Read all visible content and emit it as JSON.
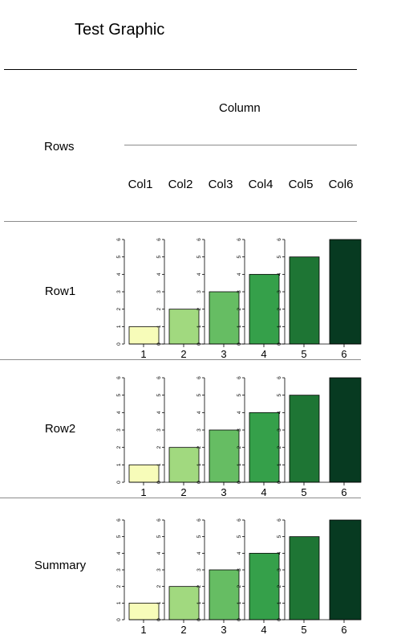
{
  "title": "Test Graphic",
  "column_header": "Column",
  "rows_header": "Rows",
  "columns": [
    "Col1",
    "Col2",
    "Col3",
    "Col4",
    "Col5",
    "Col6"
  ],
  "rows": [
    "Row1",
    "Row2",
    "Summary"
  ],
  "colors": {
    "bars": [
      "#F7FCB9",
      "#A1D97F",
      "#66BD63",
      "#35A04A",
      "#1E7534",
      "#073A21"
    ],
    "rule_dark": "#000000",
    "rule_light": "#8c8c8c"
  },
  "chart_data": [
    {
      "type": "bar",
      "row": "Row1",
      "panels": [
        {
          "column": "Col1",
          "x": [
            1
          ],
          "values": [
            1
          ],
          "ylim": [
            0,
            6
          ],
          "yticks": [
            "0",
            "1",
            "2",
            "3",
            "4",
            "5",
            "6"
          ],
          "xtick": "1"
        },
        {
          "column": "Col2",
          "x": [
            2
          ],
          "values": [
            2
          ],
          "ylim": [
            0,
            6
          ],
          "yticks": [
            "0",
            "1",
            "2",
            "3",
            "4",
            "5",
            "6"
          ],
          "xtick": "2"
        },
        {
          "column": "Col3",
          "x": [
            3
          ],
          "values": [
            3
          ],
          "ylim": [
            0,
            6
          ],
          "yticks": [
            "0",
            "1",
            "2",
            "3",
            "4",
            "5",
            "6"
          ],
          "xtick": "3"
        },
        {
          "column": "Col4",
          "x": [
            4
          ],
          "values": [
            4
          ],
          "ylim": [
            0,
            6
          ],
          "yticks": [
            "0",
            "1",
            "2",
            "3",
            "4",
            "5",
            "6"
          ],
          "xtick": "4"
        },
        {
          "column": "Col5",
          "x": [
            5
          ],
          "values": [
            5
          ],
          "ylim": [
            0,
            6
          ],
          "yticks": [
            "0",
            "1",
            "2",
            "3",
            "4",
            "5",
            "6"
          ],
          "xtick": "5"
        },
        {
          "column": "Col6",
          "x": [
            6
          ],
          "values": [
            6
          ],
          "ylim": [
            0,
            6
          ],
          "yticks": [],
          "xtick": "6"
        }
      ]
    },
    {
      "type": "bar",
      "row": "Row2",
      "panels": [
        {
          "column": "Col1",
          "x": [
            1
          ],
          "values": [
            1
          ],
          "ylim": [
            0,
            6
          ],
          "yticks": [
            "0",
            "1",
            "2",
            "3",
            "4",
            "5",
            "6"
          ],
          "xtick": "1"
        },
        {
          "column": "Col2",
          "x": [
            2
          ],
          "values": [
            2
          ],
          "ylim": [
            0,
            6
          ],
          "yticks": [
            "0",
            "1",
            "2",
            "3",
            "4",
            "5",
            "6"
          ],
          "xtick": "2"
        },
        {
          "column": "Col3",
          "x": [
            3
          ],
          "values": [
            3
          ],
          "ylim": [
            0,
            6
          ],
          "yticks": [
            "0",
            "1",
            "2",
            "3",
            "4",
            "5",
            "6"
          ],
          "xtick": "3"
        },
        {
          "column": "Col4",
          "x": [
            4
          ],
          "values": [
            4
          ],
          "ylim": [
            0,
            6
          ],
          "yticks": [
            "0",
            "1",
            "2",
            "3",
            "4",
            "5",
            "6"
          ],
          "xtick": "4"
        },
        {
          "column": "Col5",
          "x": [
            5
          ],
          "values": [
            5
          ],
          "ylim": [
            0,
            6
          ],
          "yticks": [
            "0",
            "1",
            "2",
            "3",
            "4",
            "5",
            "6"
          ],
          "xtick": "5"
        },
        {
          "column": "Col6",
          "x": [
            6
          ],
          "values": [
            6
          ],
          "ylim": [
            0,
            6
          ],
          "yticks": [],
          "xtick": "6"
        }
      ]
    },
    {
      "type": "bar",
      "row": "Summary",
      "panels": [
        {
          "column": "Col1",
          "x": [
            1
          ],
          "values": [
            1
          ],
          "ylim": [
            0,
            6
          ],
          "yticks": [
            "0",
            "1",
            "2",
            "3",
            "4",
            "5",
            "6"
          ],
          "xtick": "1"
        },
        {
          "column": "Col2",
          "x": [
            2
          ],
          "values": [
            2
          ],
          "ylim": [
            0,
            6
          ],
          "yticks": [
            "0",
            "1",
            "2",
            "3",
            "4",
            "5",
            "6"
          ],
          "xtick": "2"
        },
        {
          "column": "Col3",
          "x": [
            3
          ],
          "values": [
            3
          ],
          "ylim": [
            0,
            6
          ],
          "yticks": [
            "0",
            "1",
            "2",
            "3",
            "4",
            "5",
            "6"
          ],
          "xtick": "3"
        },
        {
          "column": "Col4",
          "x": [
            4
          ],
          "values": [
            4
          ],
          "ylim": [
            0,
            6
          ],
          "yticks": [
            "0",
            "1",
            "2",
            "3",
            "4",
            "5",
            "6"
          ],
          "xtick": "4"
        },
        {
          "column": "Col5",
          "x": [
            5
          ],
          "values": [
            5
          ],
          "ylim": [
            0,
            6
          ],
          "yticks": [
            "0",
            "1",
            "2",
            "3",
            "4",
            "5",
            "6"
          ],
          "xtick": "5"
        },
        {
          "column": "Col6",
          "x": [
            6
          ],
          "values": [
            6
          ],
          "ylim": [
            0,
            6
          ],
          "yticks": [],
          "xtick": "6"
        }
      ]
    }
  ]
}
